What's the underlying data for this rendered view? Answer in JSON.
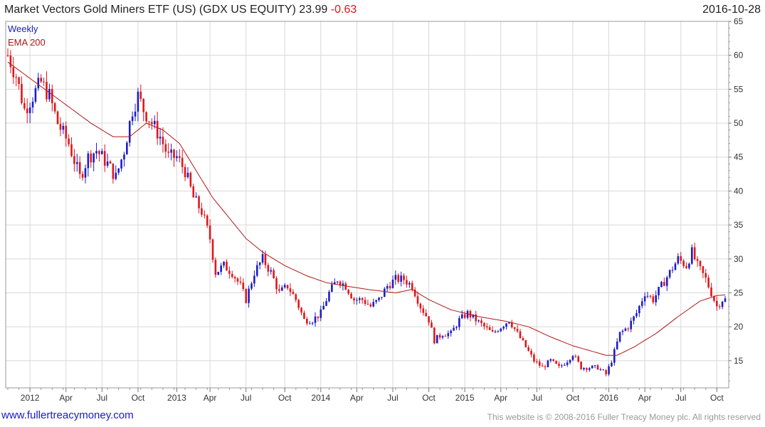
{
  "header": {
    "title": "Market Vectors Gold Miners ETF (US)  (GDX US EQUITY) 23.99",
    "change": "-0.63",
    "date": "2016-10-28"
  },
  "legend": {
    "period": "Weekly",
    "ema": "EMA 200"
  },
  "footer": {
    "site": "www.fullertreacymoney.com",
    "copyright": "This website is © 2008-2016 Fuller Treacy Money plc. All rights reserved"
  },
  "colors": {
    "up": "#1c1cc8",
    "down": "#e0161b",
    "ema": "#b01818",
    "grid": "#d8d8d8"
  },
  "chart_data": {
    "type": "candlestick",
    "frequency": "weekly",
    "ylim": [
      11,
      65
    ],
    "y_ticks": [
      15,
      20,
      25,
      30,
      35,
      40,
      45,
      50,
      55,
      60,
      65
    ],
    "x_ticks": [
      {
        "label": "2012",
        "week": 8
      },
      {
        "label": "Apr",
        "week": 21
      },
      {
        "label": "Jul",
        "week": 34
      },
      {
        "label": "Oct",
        "week": 47
      },
      {
        "label": "2013",
        "week": 61
      },
      {
        "label": "Apr",
        "week": 73
      },
      {
        "label": "Jul",
        "week": 86
      },
      {
        "label": "Oct",
        "week": 100
      },
      {
        "label": "2014",
        "week": 113
      },
      {
        "label": "Apr",
        "week": 126
      },
      {
        "label": "Jul",
        "week": 139
      },
      {
        "label": "Oct",
        "week": 152
      },
      {
        "label": "2015",
        "week": 165
      },
      {
        "label": "Apr",
        "week": 178
      },
      {
        "label": "Jul",
        "week": 191
      },
      {
        "label": "Oct",
        "week": 204
      },
      {
        "label": "2016",
        "week": 217
      },
      {
        "label": "Apr",
        "week": 230
      },
      {
        "label": "Jul",
        "week": 243
      },
      {
        "label": "Oct",
        "week": 256
      }
    ],
    "close_anchors": [
      [
        0,
        60
      ],
      [
        3,
        57
      ],
      [
        6,
        52
      ],
      [
        9,
        54
      ],
      [
        12,
        56
      ],
      [
        15,
        54
      ],
      [
        18,
        50
      ],
      [
        22,
        47
      ],
      [
        26,
        42
      ],
      [
        29,
        45
      ],
      [
        32,
        46
      ],
      [
        36,
        44
      ],
      [
        39,
        42
      ],
      [
        42,
        46
      ],
      [
        45,
        52
      ],
      [
        47,
        54
      ],
      [
        49,
        52
      ],
      [
        52,
        50
      ],
      [
        55,
        48
      ],
      [
        58,
        45
      ],
      [
        61,
        45
      ],
      [
        64,
        43
      ],
      [
        67,
        39
      ],
      [
        70,
        37
      ],
      [
        73,
        33
      ],
      [
        75,
        28
      ],
      [
        78,
        29
      ],
      [
        81,
        28
      ],
      [
        84,
        26
      ],
      [
        86,
        24
      ],
      [
        89,
        28
      ],
      [
        92,
        30
      ],
      [
        95,
        28
      ],
      [
        98,
        25
      ],
      [
        101,
        26
      ],
      [
        104,
        24
      ],
      [
        107,
        21
      ],
      [
        110,
        21
      ],
      [
        113,
        22
      ],
      [
        116,
        25
      ],
      [
        119,
        27
      ],
      [
        122,
        26
      ],
      [
        125,
        24
      ],
      [
        128,
        24
      ],
      [
        131,
        23
      ],
      [
        134,
        24
      ],
      [
        137,
        26
      ],
      [
        140,
        27
      ],
      [
        143,
        27
      ],
      [
        146,
        26
      ],
      [
        149,
        23
      ],
      [
        152,
        21
      ],
      [
        154,
        18
      ],
      [
        157,
        19
      ],
      [
        160,
        19
      ],
      [
        163,
        21
      ],
      [
        166,
        22
      ],
      [
        169,
        21
      ],
      [
        172,
        20
      ],
      [
        175,
        19
      ],
      [
        178,
        20
      ],
      [
        181,
        21
      ],
      [
        184,
        19
      ],
      [
        187,
        17
      ],
      [
        190,
        15
      ],
      [
        193,
        14
      ],
      [
        196,
        15
      ],
      [
        199,
        14
      ],
      [
        202,
        15
      ],
      [
        204,
        16
      ],
      [
        207,
        14
      ],
      [
        210,
        14
      ],
      [
        213,
        14
      ],
      [
        216,
        13
      ],
      [
        218,
        15
      ],
      [
        221,
        19
      ],
      [
        224,
        20
      ],
      [
        227,
        22
      ],
      [
        230,
        25
      ],
      [
        233,
        24
      ],
      [
        236,
        26
      ],
      [
        239,
        28
      ],
      [
        242,
        30
      ],
      [
        245,
        29
      ],
      [
        247,
        31
      ],
      [
        249,
        29
      ],
      [
        252,
        27
      ],
      [
        254,
        25
      ],
      [
        256,
        23
      ],
      [
        258,
        24
      ],
      [
        259,
        23.99
      ]
    ],
    "ema200_anchors": [
      [
        0,
        59
      ],
      [
        10,
        56
      ],
      [
        20,
        53
      ],
      [
        30,
        50
      ],
      [
        38,
        48
      ],
      [
        44,
        48
      ],
      [
        50,
        50
      ],
      [
        56,
        49
      ],
      [
        62,
        47
      ],
      [
        68,
        43
      ],
      [
        74,
        39
      ],
      [
        80,
        36
      ],
      [
        86,
        33
      ],
      [
        92,
        31
      ],
      [
        100,
        29
      ],
      [
        108,
        27.5
      ],
      [
        115,
        26.5
      ],
      [
        122,
        26
      ],
      [
        130,
        25.5
      ],
      [
        140,
        25
      ],
      [
        146,
        25.5
      ],
      [
        152,
        24
      ],
      [
        160,
        22.5
      ],
      [
        170,
        21.5
      ],
      [
        180,
        20.8
      ],
      [
        188,
        20
      ],
      [
        196,
        18.5
      ],
      [
        204,
        17.2
      ],
      [
        210,
        16.5
      ],
      [
        216,
        15.8
      ],
      [
        220,
        15.8
      ],
      [
        226,
        17
      ],
      [
        234,
        19
      ],
      [
        242,
        21.5
      ],
      [
        250,
        23.8
      ],
      [
        256,
        24.6
      ],
      [
        259,
        24.7
      ]
    ],
    "last_close": 23.99,
    "last_change": -0.63
  }
}
